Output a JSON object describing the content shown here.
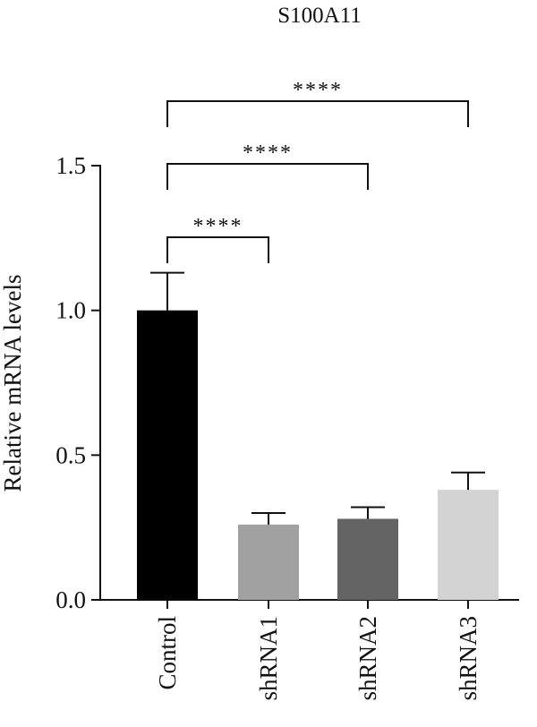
{
  "chart_data": {
    "type": "bar",
    "title": "S100A11",
    "ylabel": "Relative mRNA levels",
    "xlabel": "",
    "ylim": [
      0,
      1.5
    ],
    "yticks": [
      "0.0",
      "0.5",
      "1.0",
      "1.5"
    ],
    "categories": [
      "Control",
      "shRNA1",
      "shRNA2",
      "shRNA3"
    ],
    "values": [
      1.0,
      0.26,
      0.28,
      0.38
    ],
    "errors": [
      0.13,
      0.04,
      0.04,
      0.06
    ],
    "colors": [
      "#000000",
      "#a1a1a1",
      "#646464",
      "#d3d3d3"
    ],
    "significance": [
      {
        "from": "Control",
        "to": "shRNA1",
        "label": "****"
      },
      {
        "from": "Control",
        "to": "shRNA2",
        "label": "****"
      },
      {
        "from": "Control",
        "to": "shRNA3",
        "label": "****"
      }
    ],
    "grid": false
  }
}
